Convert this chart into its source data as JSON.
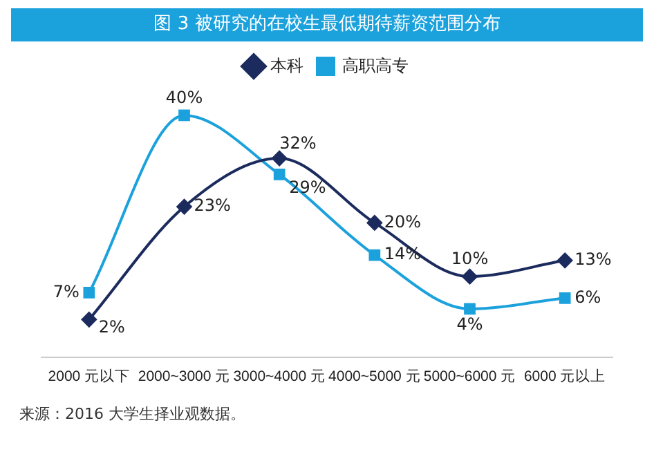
{
  "chart_data": {
    "type": "line",
    "title": "图 3  被研究的在校生最低期待薪资范围分布",
    "categories": [
      "2000 元以下",
      "2000~3000 元",
      "3000~4000 元",
      "4000~5000 元",
      "5000~6000 元",
      "6000 元以上"
    ],
    "series": [
      {
        "name": "本科",
        "color": "#1c2b5e",
        "marker": "diamond",
        "values": [
          2,
          23,
          32,
          20,
          10,
          13
        ],
        "value_labels": [
          "2%",
          "23%",
          "32%",
          "20%",
          "10%",
          "13%"
        ]
      },
      {
        "name": "高职高专",
        "color": "#1ba1dc",
        "marker": "square",
        "values": [
          7,
          40,
          29,
          14,
          4,
          6
        ],
        "value_labels": [
          "7%",
          "40%",
          "29%",
          "14%",
          "4%",
          "6%"
        ]
      }
    ],
    "legend": "top",
    "grid": false,
    "tick_labels": "x",
    "annotations": [
      "来源：2016 大学生择业观数据。"
    ]
  }
}
